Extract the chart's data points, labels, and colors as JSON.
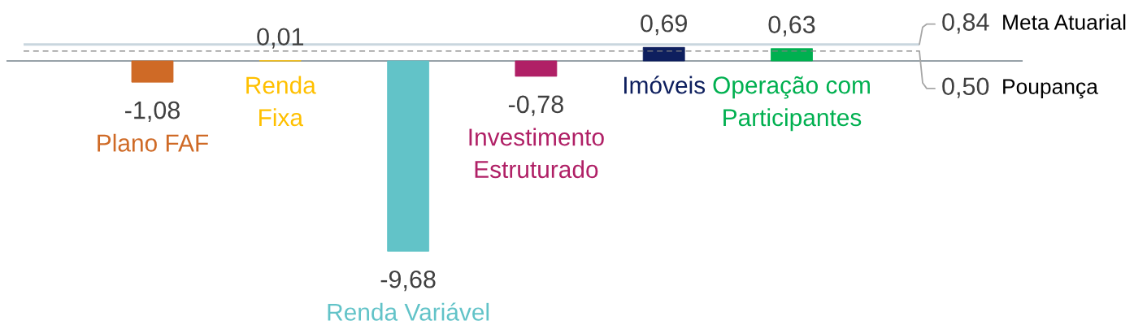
{
  "chart_data": {
    "type": "bar",
    "categories": [
      "Plano FAF",
      "Renda\nFixa",
      "Renda Variável",
      "Investimento\nEstruturado",
      "Imóveis",
      "Operação com\nParticipantes"
    ],
    "values": [
      -1.08,
      0.01,
      -9.68,
      -0.78,
      0.69,
      0.63
    ],
    "colors": [
      "#cf6a26",
      "#ffc000",
      "#62c3c8",
      "#b02066",
      "#0e1f5e",
      "#00b050"
    ],
    "value_labels": [
      "-1,08",
      "0,01",
      "-9,68",
      "-0,78",
      "0,69",
      "0,63"
    ],
    "ref_lines": [
      {
        "axis": "y",
        "value": 0.84,
        "color": "#c9d6de",
        "line_style": "solid"
      },
      {
        "axis": "y",
        "value": 0.5,
        "color": "#808080",
        "line_style": "dashed"
      }
    ],
    "annotations": [
      "0,84",
      "Meta Atuarial",
      "0,50",
      "Poupança"
    ],
    "tick_labels": "x"
  }
}
